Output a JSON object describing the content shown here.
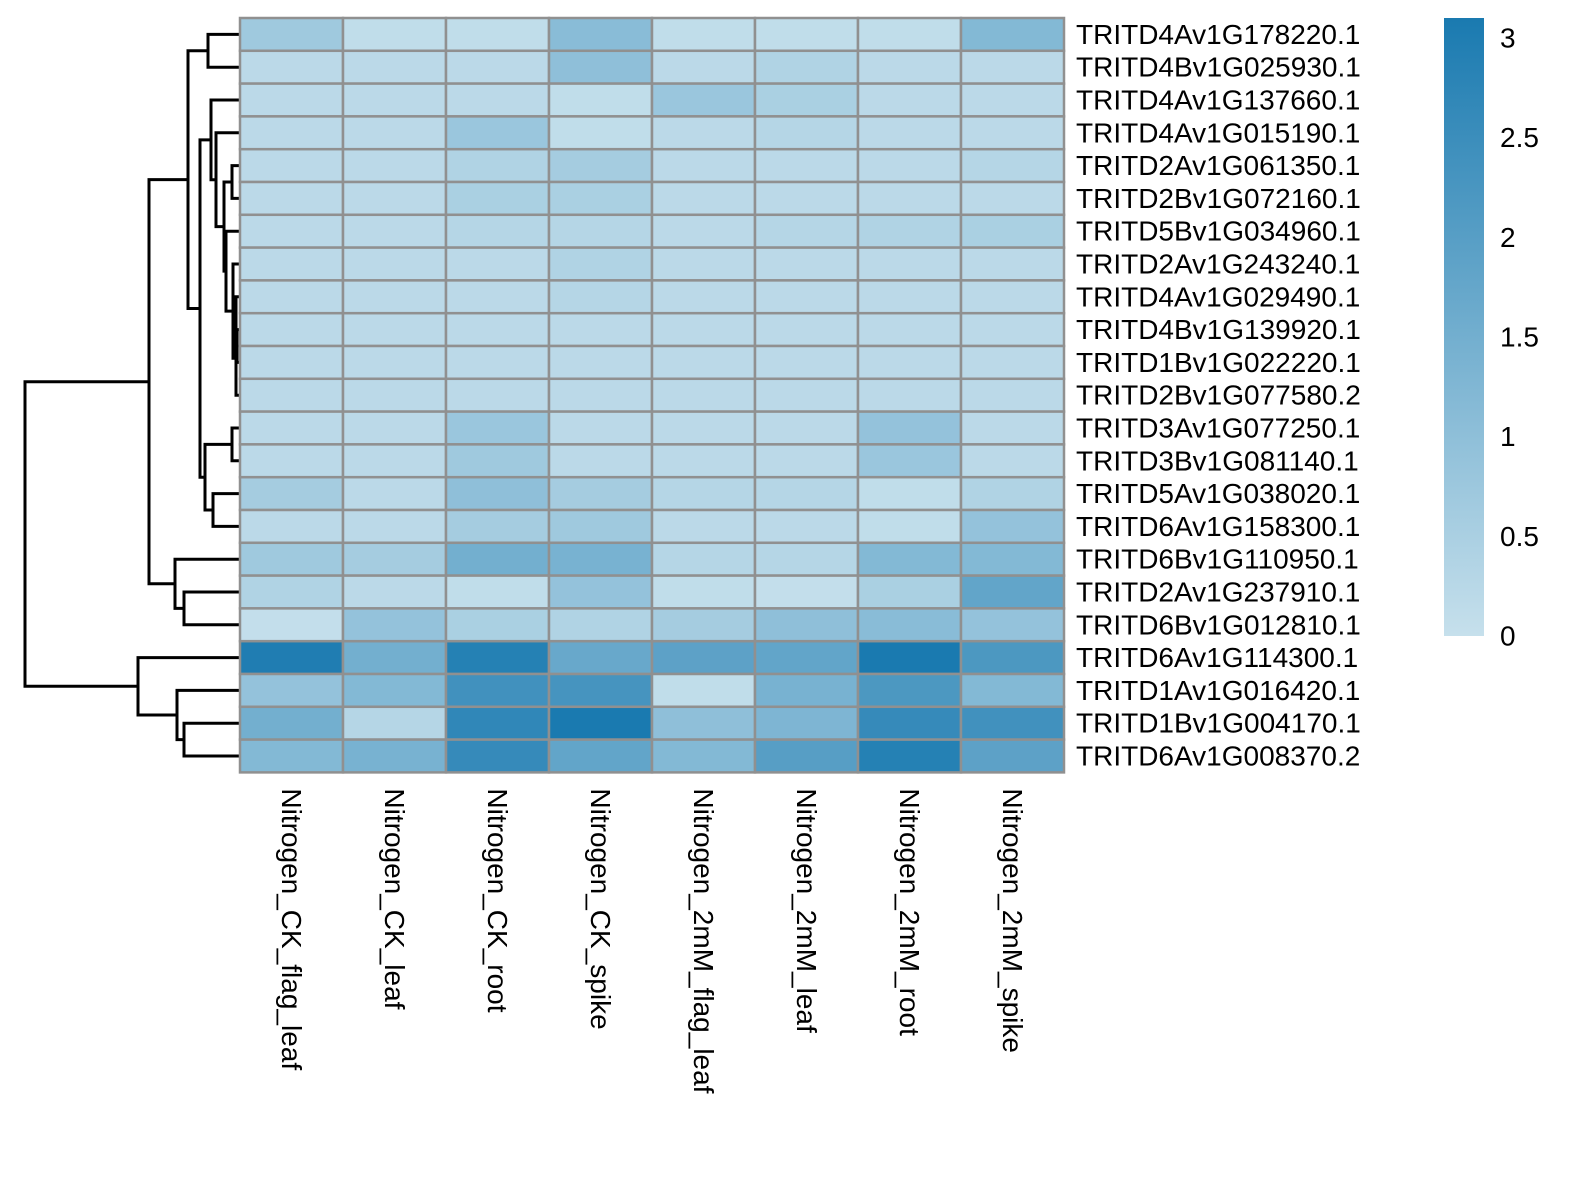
{
  "chart_data": {
    "type": "heatmap",
    "title": "",
    "xlabel": "",
    "ylabel": "",
    "columns": [
      "Nitrogen_CK_flag_leaf",
      "Nitrogen_CK_leaf",
      "Nitrogen_CK_root",
      "Nitrogen_CK_spike",
      "Nitrogen_2mM_flag_leaf",
      "Nitrogen_2mM_leaf",
      "Nitrogen_2mM_root",
      "Nitrogen_2mM_spike"
    ],
    "rows": [
      "TRITD4Av1G178220.1",
      "TRITD4Bv1G025930.1",
      "TRITD4Av1G137660.1",
      "TRITD4Av1G015190.1",
      "TRITD2Av1G061350.1",
      "TRITD2Bv1G072160.1",
      "TRITD5Bv1G034960.1",
      "TRITD2Av1G243240.1",
      "TRITD4Av1G029490.1",
      "TRITD4Bv1G139920.1",
      "TRITD1Bv1G022220.1",
      "TRITD2Bv1G077580.2",
      "TRITD3Av1G077250.1",
      "TRITD3Bv1G081140.1",
      "TRITD5Av1G038020.1",
      "TRITD6Av1G158300.1",
      "TRITD6Bv1G110950.1",
      "TRITD2Av1G237910.1",
      "TRITD6Bv1G012810.1",
      "TRITD6Av1G114300.1",
      "TRITD1Av1G016420.1",
      "TRITD1Bv1G004170.1",
      "TRITD6Av1G008370.2"
    ],
    "values": [
      [
        0.7,
        0.1,
        0.1,
        1.1,
        0.1,
        0.1,
        0.1,
        1.2
      ],
      [
        0.2,
        0.2,
        0.2,
        1.0,
        0.2,
        0.4,
        0.2,
        0.2
      ],
      [
        0.2,
        0.2,
        0.2,
        0.1,
        0.8,
        0.5,
        0.2,
        0.2
      ],
      [
        0.2,
        0.2,
        0.8,
        0.1,
        0.2,
        0.3,
        0.2,
        0.2
      ],
      [
        0.2,
        0.2,
        0.4,
        0.6,
        0.2,
        0.2,
        0.2,
        0.3
      ],
      [
        0.2,
        0.2,
        0.5,
        0.5,
        0.2,
        0.2,
        0.2,
        0.2
      ],
      [
        0.2,
        0.2,
        0.3,
        0.3,
        0.2,
        0.3,
        0.4,
        0.5
      ],
      [
        0.2,
        0.2,
        0.2,
        0.4,
        0.2,
        0.2,
        0.2,
        0.2
      ],
      [
        0.2,
        0.2,
        0.2,
        0.3,
        0.2,
        0.2,
        0.2,
        0.2
      ],
      [
        0.2,
        0.2,
        0.2,
        0.2,
        0.2,
        0.2,
        0.2,
        0.2
      ],
      [
        0.2,
        0.2,
        0.2,
        0.2,
        0.2,
        0.2,
        0.2,
        0.2
      ],
      [
        0.2,
        0.2,
        0.2,
        0.2,
        0.2,
        0.2,
        0.2,
        0.2
      ],
      [
        0.2,
        0.2,
        0.8,
        0.2,
        0.2,
        0.2,
        0.9,
        0.2
      ],
      [
        0.2,
        0.2,
        0.7,
        0.2,
        0.2,
        0.2,
        0.8,
        0.2
      ],
      [
        0.6,
        0.2,
        1.0,
        0.6,
        0.3,
        0.3,
        0.1,
        0.4
      ],
      [
        0.2,
        0.2,
        0.6,
        0.7,
        0.2,
        0.2,
        0.1,
        0.9
      ],
      [
        0.7,
        0.6,
        1.5,
        1.4,
        0.3,
        0.3,
        1.2,
        1.2
      ],
      [
        0.4,
        0.2,
        0.1,
        0.9,
        0.1,
        0.05,
        0.5,
        1.8
      ],
      [
        0.05,
        0.9,
        0.5,
        0.4,
        0.6,
        1.0,
        1.1,
        0.9
      ],
      [
        3.0,
        1.5,
        2.9,
        1.7,
        1.9,
        1.8,
        3.1,
        2.2
      ],
      [
        0.9,
        1.2,
        2.4,
        2.3,
        0.1,
        1.4,
        2.2,
        1.2
      ],
      [
        1.5,
        0.3,
        2.7,
        3.1,
        1.0,
        1.3,
        2.6,
        2.4
      ],
      [
        1.2,
        1.4,
        2.6,
        1.8,
        1.2,
        2.0,
        2.9,
        1.9
      ]
    ],
    "color_scale": {
      "min": 0,
      "max": 3.1,
      "low_color": "#c6e0ec",
      "high_color": "#1a7ab0"
    },
    "legend_ticks": [
      "3",
      "2.5",
      "2",
      "1.5",
      "1",
      "0.5",
      "0"
    ],
    "grid": true,
    "cell_border_color": "#909090",
    "legend_position": "right",
    "dendrogram": "rows"
  }
}
